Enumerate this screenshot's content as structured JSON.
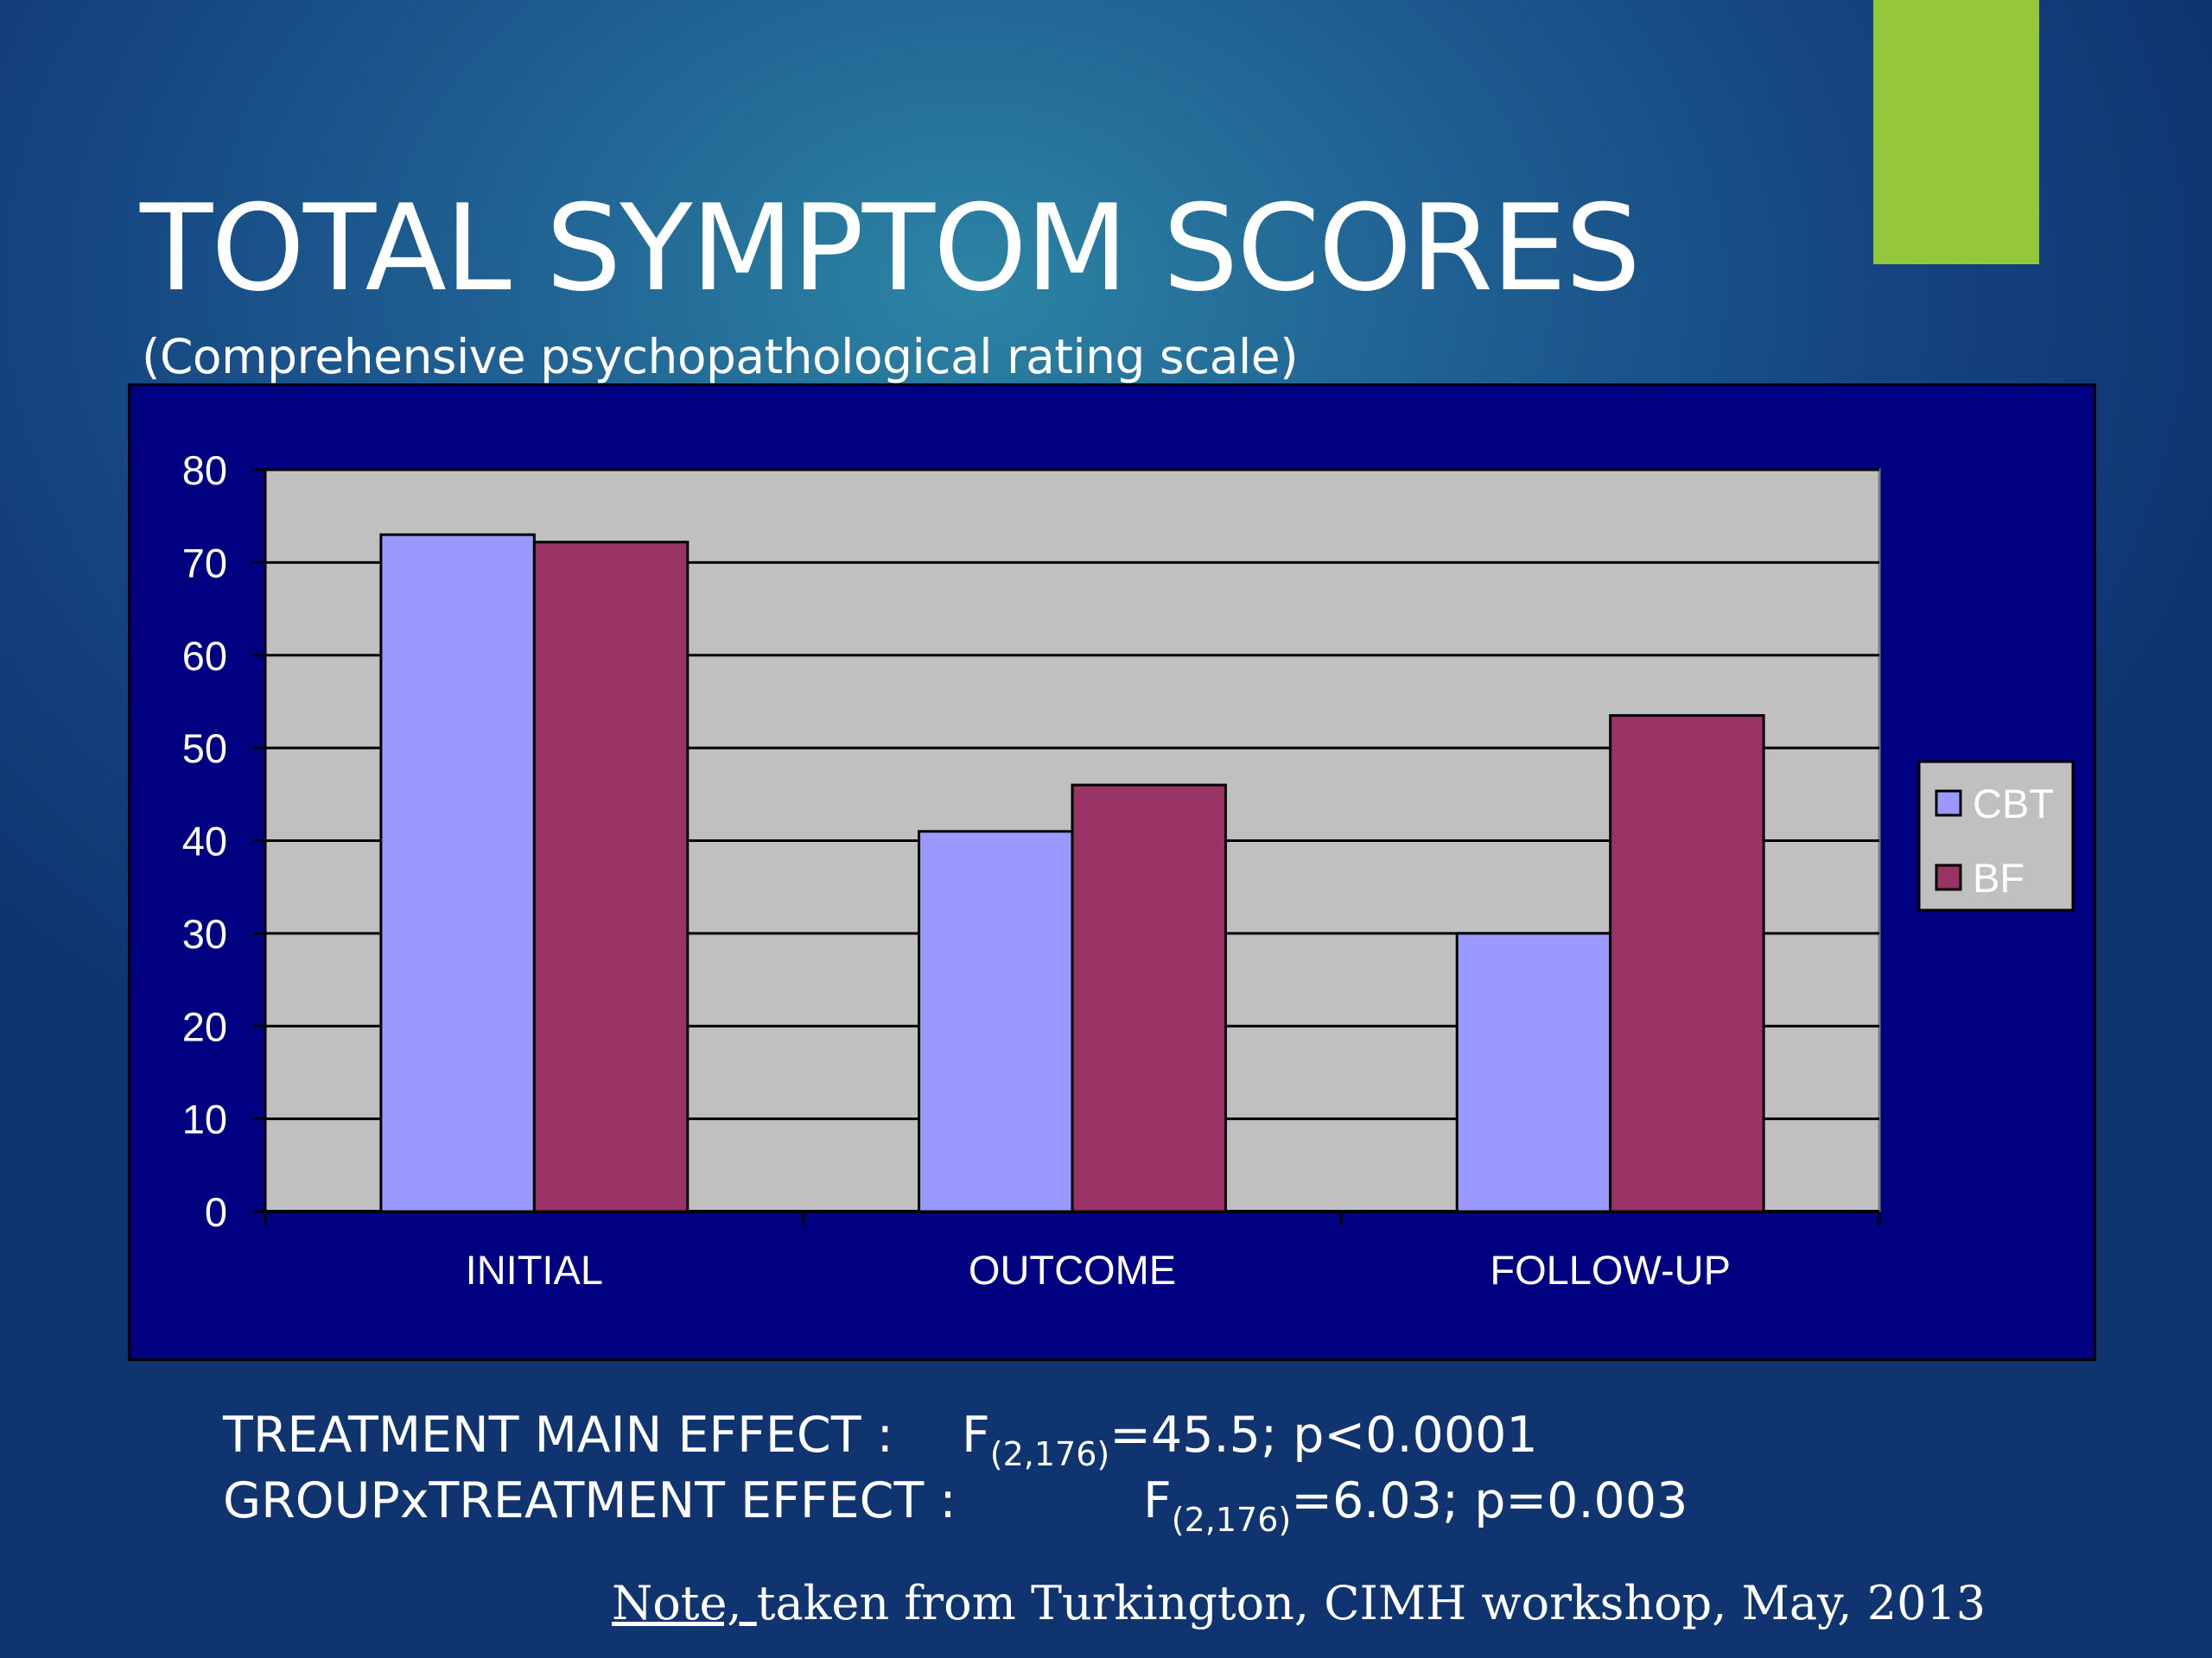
{
  "slide": {
    "title": "TOTAL SYMPTOM SCORES",
    "subtitle": "(Comprehensive psychopathological rating scale)",
    "accent_color": "#93c83b",
    "stats": [
      {
        "label": "TREATMENT MAIN EFFECT :",
        "f_symbol": "F",
        "f_df": "(2,176)",
        "f_value": "=45.5; p<0.0001"
      },
      {
        "label": "GROUPxTREATMENT EFFECT :",
        "f_symbol": "F",
        "f_df": "(2,176)",
        "f_value": "=6.03; p=0.003"
      }
    ],
    "note": {
      "underlined": "Note, ",
      "rest": "taken from Turkington, CIMH workshop, May, 2013"
    }
  },
  "chart_data": {
    "type": "bar",
    "categories": [
      "INITIAL",
      "OUTCOME",
      "FOLLOW-UP"
    ],
    "series": [
      {
        "name": "CBT",
        "values": [
          73,
          41,
          30
        ],
        "color": "#9999ff"
      },
      {
        "name": "BF",
        "values": [
          72.2,
          46,
          53.5
        ],
        "color": "#993366"
      }
    ],
    "ylim": [
      0,
      80
    ],
    "yticks": [
      0,
      10,
      20,
      30,
      40,
      50,
      60,
      70,
      80
    ],
    "grid": true,
    "legend": "right",
    "plot_background": "#c0c0c0",
    "chart_background": "#000080"
  }
}
